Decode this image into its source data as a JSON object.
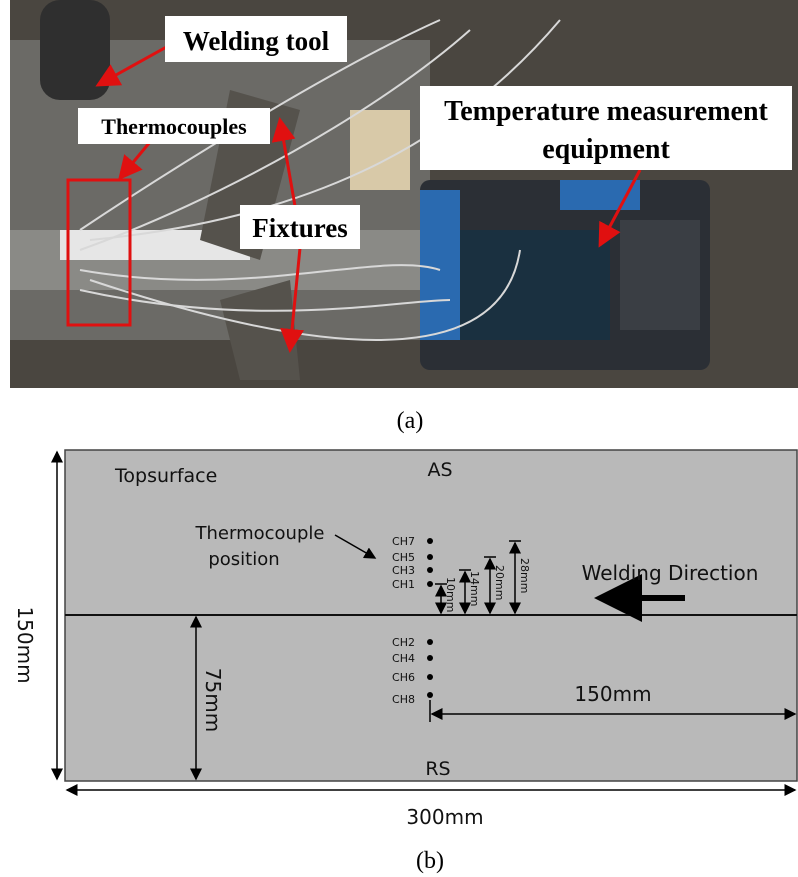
{
  "panel_a": {
    "labels": {
      "welding_tool": "Welding tool",
      "thermocouples": "Thermocouples",
      "fixtures": "Fixtures",
      "equipment": [
        "Temperature measurement",
        "equipment"
      ]
    },
    "caption": "(a)"
  },
  "panel_b": {
    "surface": "Topsurface",
    "advancing_side": "AS",
    "retreating_side": "RS",
    "thermocouple_note": [
      "Thermocouple",
      "position"
    ],
    "channels_top": [
      "CH7",
      "CH5",
      "CH3",
      "CH1"
    ],
    "channels_bottom": [
      "CH2",
      "CH4",
      "CH6",
      "CH8"
    ],
    "offsets": [
      "10mm",
      "14mm",
      "20mm",
      "28mm"
    ],
    "direction": "Welding Direction",
    "width": "150mm",
    "half_width": "75mm",
    "distance": "150mm",
    "length": "300mm",
    "caption": "(b)"
  }
}
